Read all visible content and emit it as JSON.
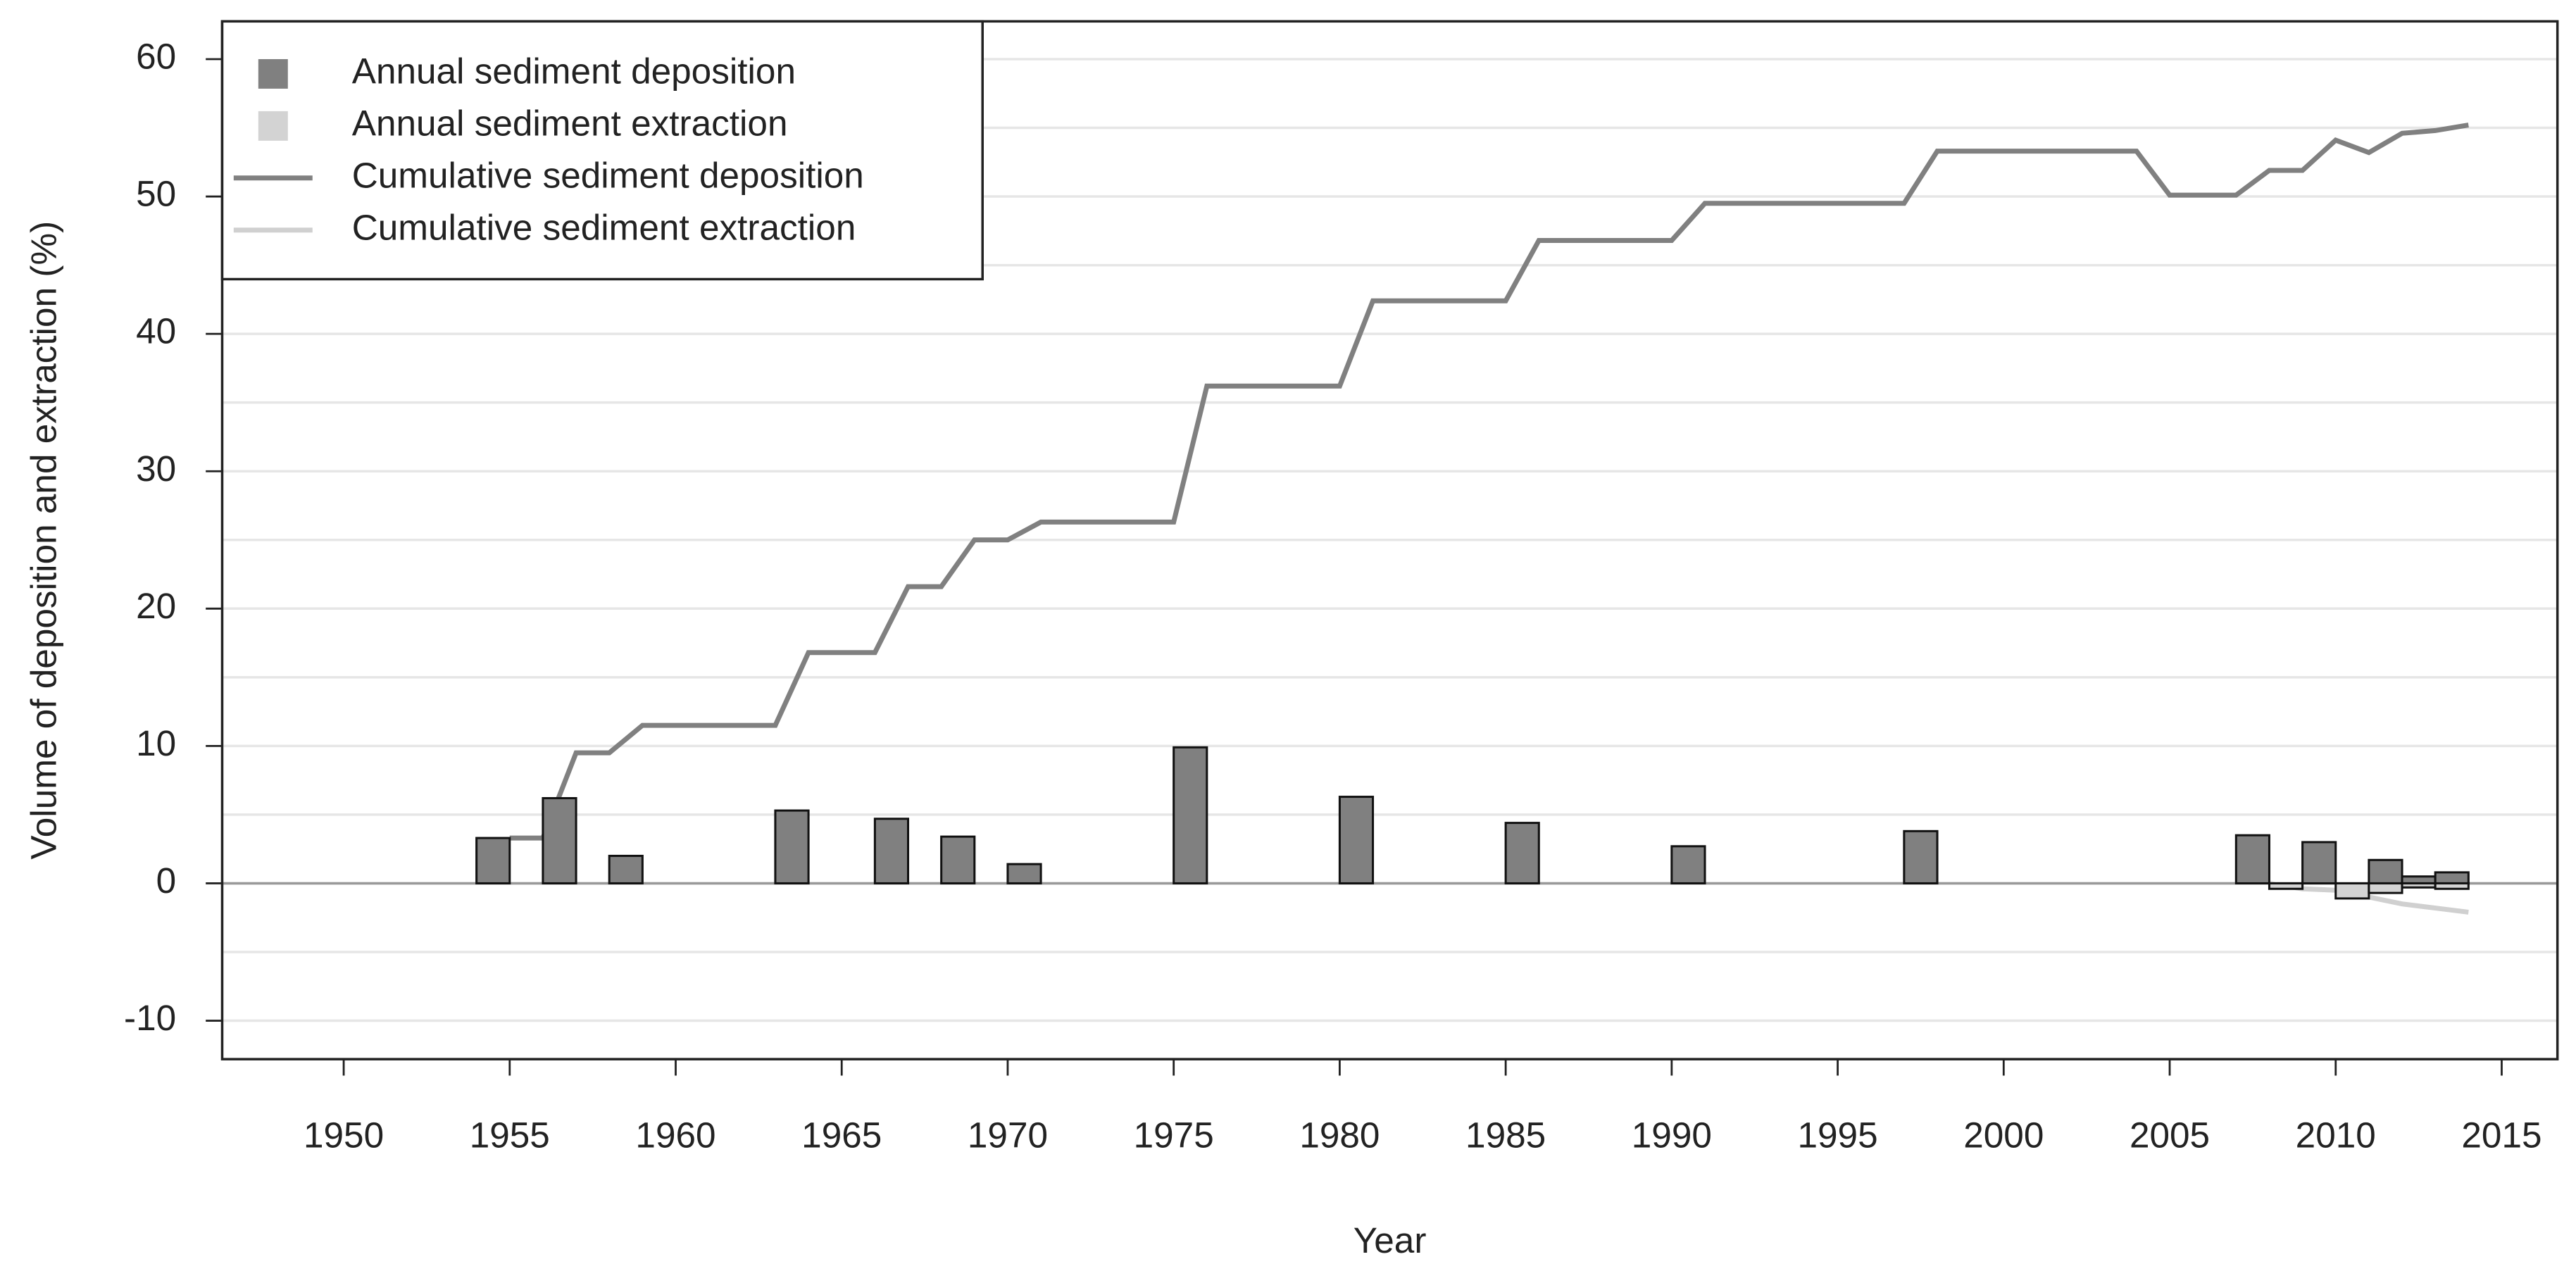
{
  "chart_data": {
    "type": "bar_line",
    "x_label": "Year",
    "y_label": "Volume of deposition and extraction (%)",
    "xlim": [
      1946.34,
      2016.68
    ],
    "xticks": [
      1950,
      1955,
      1960,
      1965,
      1970,
      1975,
      1980,
      1985,
      1990,
      1995,
      2000,
      2005,
      2010,
      2015
    ],
    "ylim": [
      -12.8,
      62.75
    ],
    "yticks": [
      -10,
      0,
      10,
      20,
      30,
      40,
      50,
      60
    ],
    "yminor_grid": [
      -5,
      5,
      15,
      25,
      35,
      45,
      55
    ],
    "reference_line": 0,
    "grid": true,
    "legend": "top-left",
    "series": [
      {
        "name": "Annual sediment deposition",
        "kind": "bar",
        "color": "#808080",
        "x": [
          1952,
          1954,
          1956,
          1958,
          1963,
          1966,
          1968,
          1970,
          1975,
          1980,
          1985,
          1990,
          1997,
          2004,
          2007,
          2009,
          2011,
          2012,
          2013
        ],
        "values": [
          0,
          3.3,
          6.2,
          2.0,
          5.3,
          4.7,
          3.4,
          1.4,
          9.9,
          6.3,
          4.4,
          2.7,
          3.8,
          0,
          3.5,
          3.0,
          1.7,
          0.5,
          0.8
        ]
      },
      {
        "name": "Annual sediment extraction",
        "kind": "bar",
        "color": "#d3d3d3",
        "x": [
          2008,
          2010,
          2011,
          2012,
          2013
        ],
        "values": [
          -0.4,
          -1.1,
          -0.7,
          -0.3,
          -0.4
        ]
      },
      {
        "name": "Cumulative sediment deposition",
        "kind": "line",
        "color": "#808080",
        "x": [
          1955,
          1956,
          1957,
          1958,
          1959,
          1963,
          1964,
          1966,
          1967,
          1968,
          1969,
          1970,
          1971,
          1975,
          1976,
          1980,
          1981,
          1985,
          1986,
          1990,
          1991,
          1997,
          1998,
          2004,
          2005,
          2007,
          2008,
          2009,
          2010,
          2011,
          2012,
          2013,
          2014
        ],
        "values": [
          3.3,
          3.3,
          9.5,
          9.5,
          11.5,
          11.5,
          16.8,
          16.8,
          21.6,
          21.6,
          25.0,
          25.0,
          26.3,
          26.3,
          36.2,
          36.2,
          42.4,
          42.4,
          46.8,
          46.8,
          49.5,
          49.5,
          53.3,
          53.3,
          50.1,
          50.1,
          51.9,
          51.9,
          54.1,
          53.2,
          54.6,
          54.8,
          55.2
        ]
      },
      {
        "name": "Cumulative sediment extraction",
        "kind": "line",
        "color": "#d0d0d0",
        "x": [
          2008,
          2009,
          2010,
          2011,
          2012,
          2013,
          2014
        ],
        "values": [
          0,
          -0.4,
          -0.5,
          -1.0,
          -1.5,
          -1.8,
          -2.1
        ]
      }
    ]
  }
}
